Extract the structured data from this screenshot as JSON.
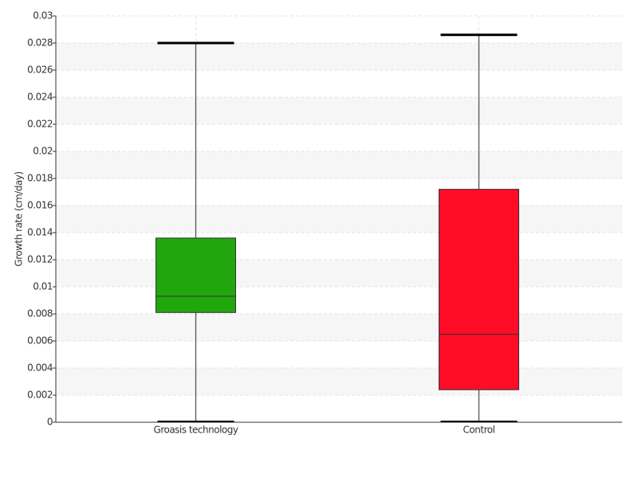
{
  "chart_data": {
    "type": "box",
    "y_label": "Growth rate (cm/day)",
    "categories": [
      "Groasis technology",
      "Control"
    ],
    "boxes": [
      {
        "min": 0,
        "q1": 0.0081,
        "median": 0.0093,
        "q3": 0.0136,
        "max": 0.028,
        "color": "#22a60e"
      },
      {
        "min": 0,
        "q1": 0.0024,
        "median": 0.0065,
        "q3": 0.0172,
        "max": 0.0286,
        "color": "#ff0c28"
      }
    ],
    "ylim": [
      0,
      0.03
    ],
    "yticks": [
      0,
      0.002,
      0.004,
      0.006,
      0.008,
      0.01,
      0.012,
      0.014,
      0.016,
      0.018,
      0.02,
      0.022,
      0.024,
      0.026,
      0.028,
      0.03
    ],
    "grid": true
  }
}
